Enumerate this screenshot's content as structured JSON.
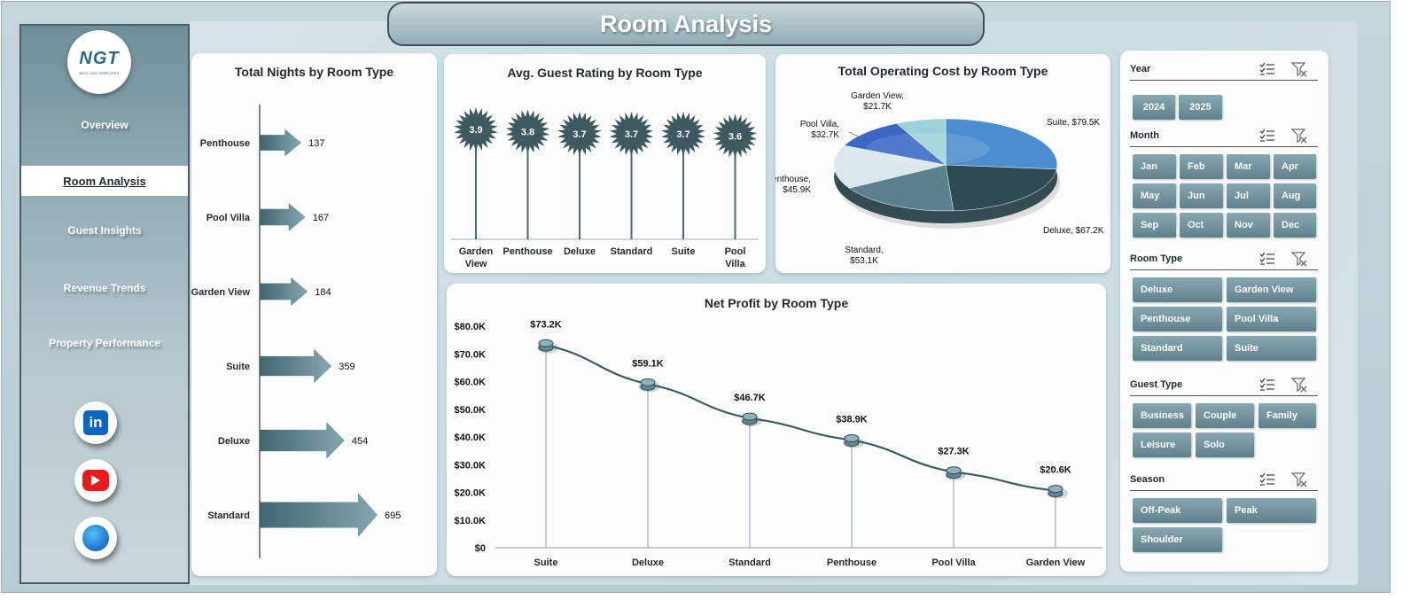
{
  "header": {
    "title": "Room Analysis"
  },
  "logo": {
    "text": "NGT",
    "subtext": "NEXT GEN TEMPLATES"
  },
  "sidebar": {
    "items": [
      {
        "label": "Overview"
      },
      {
        "label": "Room Analysis"
      },
      {
        "label": "Guest Insights"
      },
      {
        "label": "Revenue Trends"
      },
      {
        "label": "Property Performance"
      }
    ],
    "active_index": 1,
    "social": [
      "linkedin-icon",
      "youtube-icon",
      "web-globe-icon"
    ]
  },
  "colors": {
    "accent": "#4a6f79",
    "dark": "#2f4a50",
    "panel": "#fbfcfc",
    "sidebar": "#7f9ea7"
  },
  "charts": {
    "nights": {
      "title": "Total Nights by Room Type",
      "chart_data": {
        "type": "bar",
        "orientation": "horizontal",
        "categories": [
          "Penthouse",
          "Pool Villa",
          "Garden View",
          "Suite",
          "Deluxe",
          "Standard"
        ],
        "values": [
          137,
          167,
          184,
          359,
          454,
          695
        ]
      }
    },
    "rating": {
      "title": "Avg. Guest Rating by Room Type",
      "chart_data": {
        "type": "bar",
        "style": "lollipop",
        "categories": [
          "Garden View",
          "Penthouse",
          "Deluxe",
          "Standard",
          "Suite",
          "Pool Villa"
        ],
        "values": [
          3.9,
          3.8,
          3.7,
          3.7,
          3.7,
          3.6
        ]
      }
    },
    "cost": {
      "title": "Total Operating  Cost by Room Type",
      "chart_data": {
        "type": "pie",
        "style": "3d",
        "slices": [
          {
            "label": "Suite",
            "value": 79.5,
            "display": "$79.5K",
            "color": "#4a8ed0"
          },
          {
            "label": "Deluxe",
            "value": 67.2,
            "display": "$67.2K",
            "color": "#2f4a52"
          },
          {
            "label": "Standard",
            "value": 53.1,
            "display": "$53.1K",
            "color": "#5b828c"
          },
          {
            "label": "Penthouse",
            "value": 45.9,
            "display": "$45.9K",
            "color": "#dae7ec"
          },
          {
            "label": "Pool Villa",
            "value": 32.7,
            "display": "$32.7K",
            "color": "#3a68c4"
          },
          {
            "label": "Garden View",
            "value": 21.7,
            "display": "$21.7K",
            "color": "#9ed2da"
          }
        ]
      }
    },
    "profit": {
      "title": "Net Profit by Room Type",
      "chart_data": {
        "type": "line",
        "categories": [
          "Suite",
          "Deluxe",
          "Standard",
          "Penthouse",
          "Pool Villa",
          "Garden View"
        ],
        "values": [
          73.2,
          59.1,
          46.7,
          38.9,
          27.3,
          20.6
        ],
        "value_labels": [
          "$73.2K",
          "$59.1K",
          "$46.7K",
          "$38.9K",
          "$27.3K",
          "$20.6K"
        ],
        "ylim": [
          0,
          80
        ],
        "yticks": [
          "$0",
          "$10.0K",
          "$20.0K",
          "$30.0K",
          "$40.0K",
          "$50.0K",
          "$60.0K",
          "$70.0K",
          "$80.0K"
        ]
      }
    }
  },
  "slicers": [
    {
      "title": "Year",
      "items": [
        "2024",
        "2025"
      ]
    },
    {
      "title": "Month",
      "items": [
        "Jan",
        "Feb",
        "Mar",
        "Apr",
        "May",
        "Jun",
        "Jul",
        "Aug",
        "Sep",
        "Oct",
        "Nov",
        "Dec"
      ]
    },
    {
      "title": "Room Type",
      "items": [
        "Deluxe",
        "Garden View",
        "Penthouse",
        "Pool Villa",
        "Standard",
        "Suite"
      ]
    },
    {
      "title": "Guest Type",
      "items": [
        "Business",
        "Couple",
        "Family",
        "Leisure",
        "Solo"
      ]
    },
    {
      "title": "Season",
      "items": [
        "Off-Peak",
        "Peak",
        "Shoulder"
      ]
    }
  ]
}
